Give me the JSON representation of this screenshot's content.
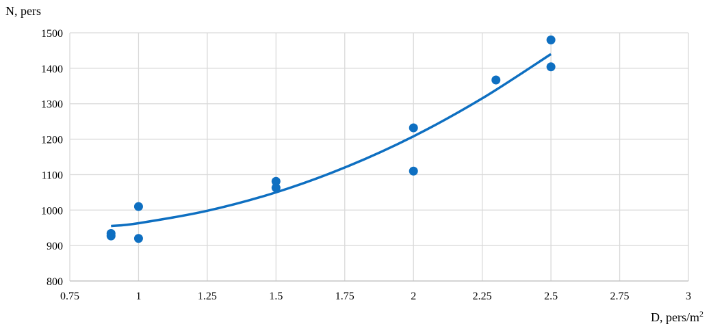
{
  "chart_data": {
    "type": "scatter",
    "title": "",
    "xlabel": "D, pers/m",
    "xlabel_sup": "2",
    "ylabel": "N, pers",
    "xlim": [
      0.75,
      3
    ],
    "ylim": [
      800,
      1500
    ],
    "x_ticks": [
      "0.75",
      "1",
      "1.25",
      "1.5",
      "1.75",
      "2",
      "2.25",
      "2.5",
      "2.75",
      "3"
    ],
    "y_ticks": [
      "800",
      "900",
      "1000",
      "1100",
      "1200",
      "1300",
      "1400",
      "1500"
    ],
    "grid": true,
    "legend": "none",
    "color": "#0E6FC1",
    "points": [
      {
        "x": 0.9,
        "y": 934
      },
      {
        "x": 0.9,
        "y": 927
      },
      {
        "x": 1.0,
        "y": 1010
      },
      {
        "x": 1.0,
        "y": 920
      },
      {
        "x": 1.5,
        "y": 1081
      },
      {
        "x": 1.5,
        "y": 1063
      },
      {
        "x": 2.0,
        "y": 1232
      },
      {
        "x": 2.0,
        "y": 1110
      },
      {
        "x": 2.3,
        "y": 1367
      },
      {
        "x": 2.5,
        "y": 1480
      },
      {
        "x": 2.5,
        "y": 1404
      }
    ],
    "trendline": {
      "type": "polynomial",
      "x": [
        0.9,
        1.0,
        1.25,
        1.5,
        1.75,
        2.0,
        2.25,
        2.5
      ],
      "y": [
        955,
        963,
        998,
        1050,
        1120,
        1208,
        1315,
        1440
      ]
    }
  }
}
